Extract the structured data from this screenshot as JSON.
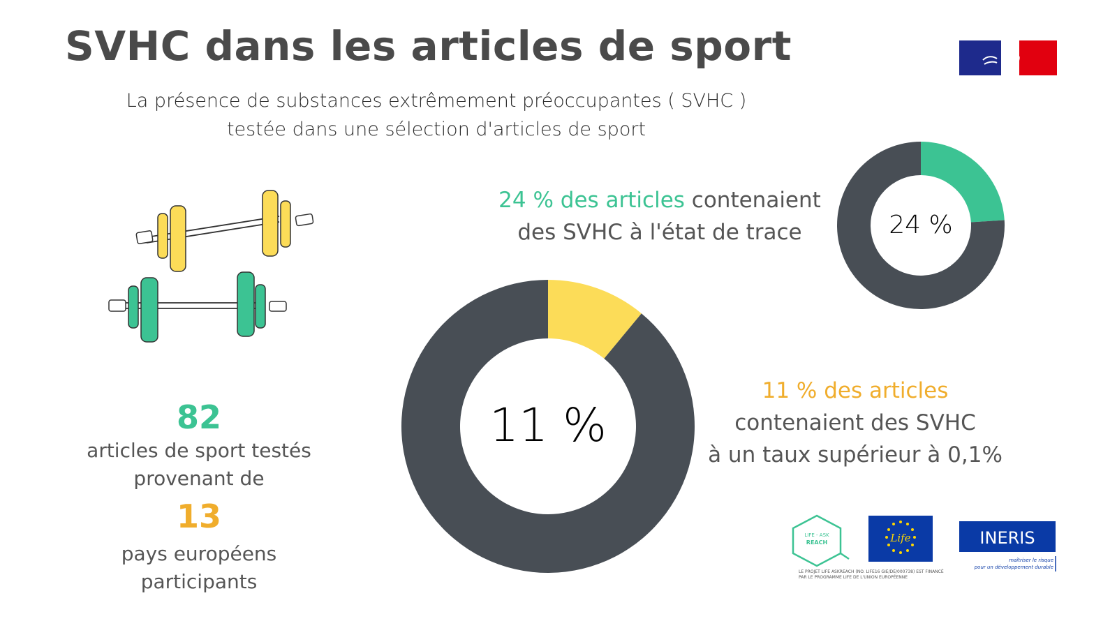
{
  "title": "SVHC dans les articles de sport",
  "subtitle": {
    "line1": "La présence de substances extrêmement préoccupantes ( SVHC )",
    "line2": "testée dans une sélection d'articles de sport"
  },
  "left_stats": {
    "articles_count": "82",
    "articles_text_1": "articles de sport testés",
    "articles_text_2": "provenant de",
    "countries_count": "13",
    "countries_text_1": "pays européens",
    "countries_text_2": "participants"
  },
  "trace": {
    "highlight": "24 % des articles",
    "rest_line1": " contenaient",
    "line2": "des SVHC à l'état de trace",
    "center_label": "24 %"
  },
  "above": {
    "highlight": "11 % des articles",
    "line2": "contenaient des SVHC",
    "line3": "à un taux supérieur à 0,1%",
    "center_label": "11 %"
  },
  "colors": {
    "green": "#3cc393",
    "yellow": "#fcdc58",
    "orange": "#f0ad2c",
    "dark": "#484e55",
    "text": "#555555"
  },
  "logos": {
    "askreach_line1": "LIFE - ASK",
    "askreach_line2": "REACH",
    "life_text": "Life",
    "ineris_text": "INERIS",
    "ineris_tagline_1": "maîtriser le risque",
    "ineris_tagline_2": "pour un développement durable",
    "funding_1": "LE PROJET LIFE ASKREACH (NO. LIFE16 GIE/DE/000738) EST FINANCÉ",
    "funding_2": "PAR LE PROGRAMME LIFE DE L'UNION EUROPÉENNE"
  },
  "chart_data": [
    {
      "type": "pie",
      "labels": [
        "",
        ""
      ],
      "values": [
        24,
        76
      ],
      "colors": [
        "#3cc393",
        "#484e55"
      ]
    },
    {
      "type": "pie",
      "labels": [
        "",
        ""
      ],
      "values": [
        11,
        89
      ],
      "colors": [
        "#fcdc58",
        "#484e55"
      ]
    }
  ]
}
